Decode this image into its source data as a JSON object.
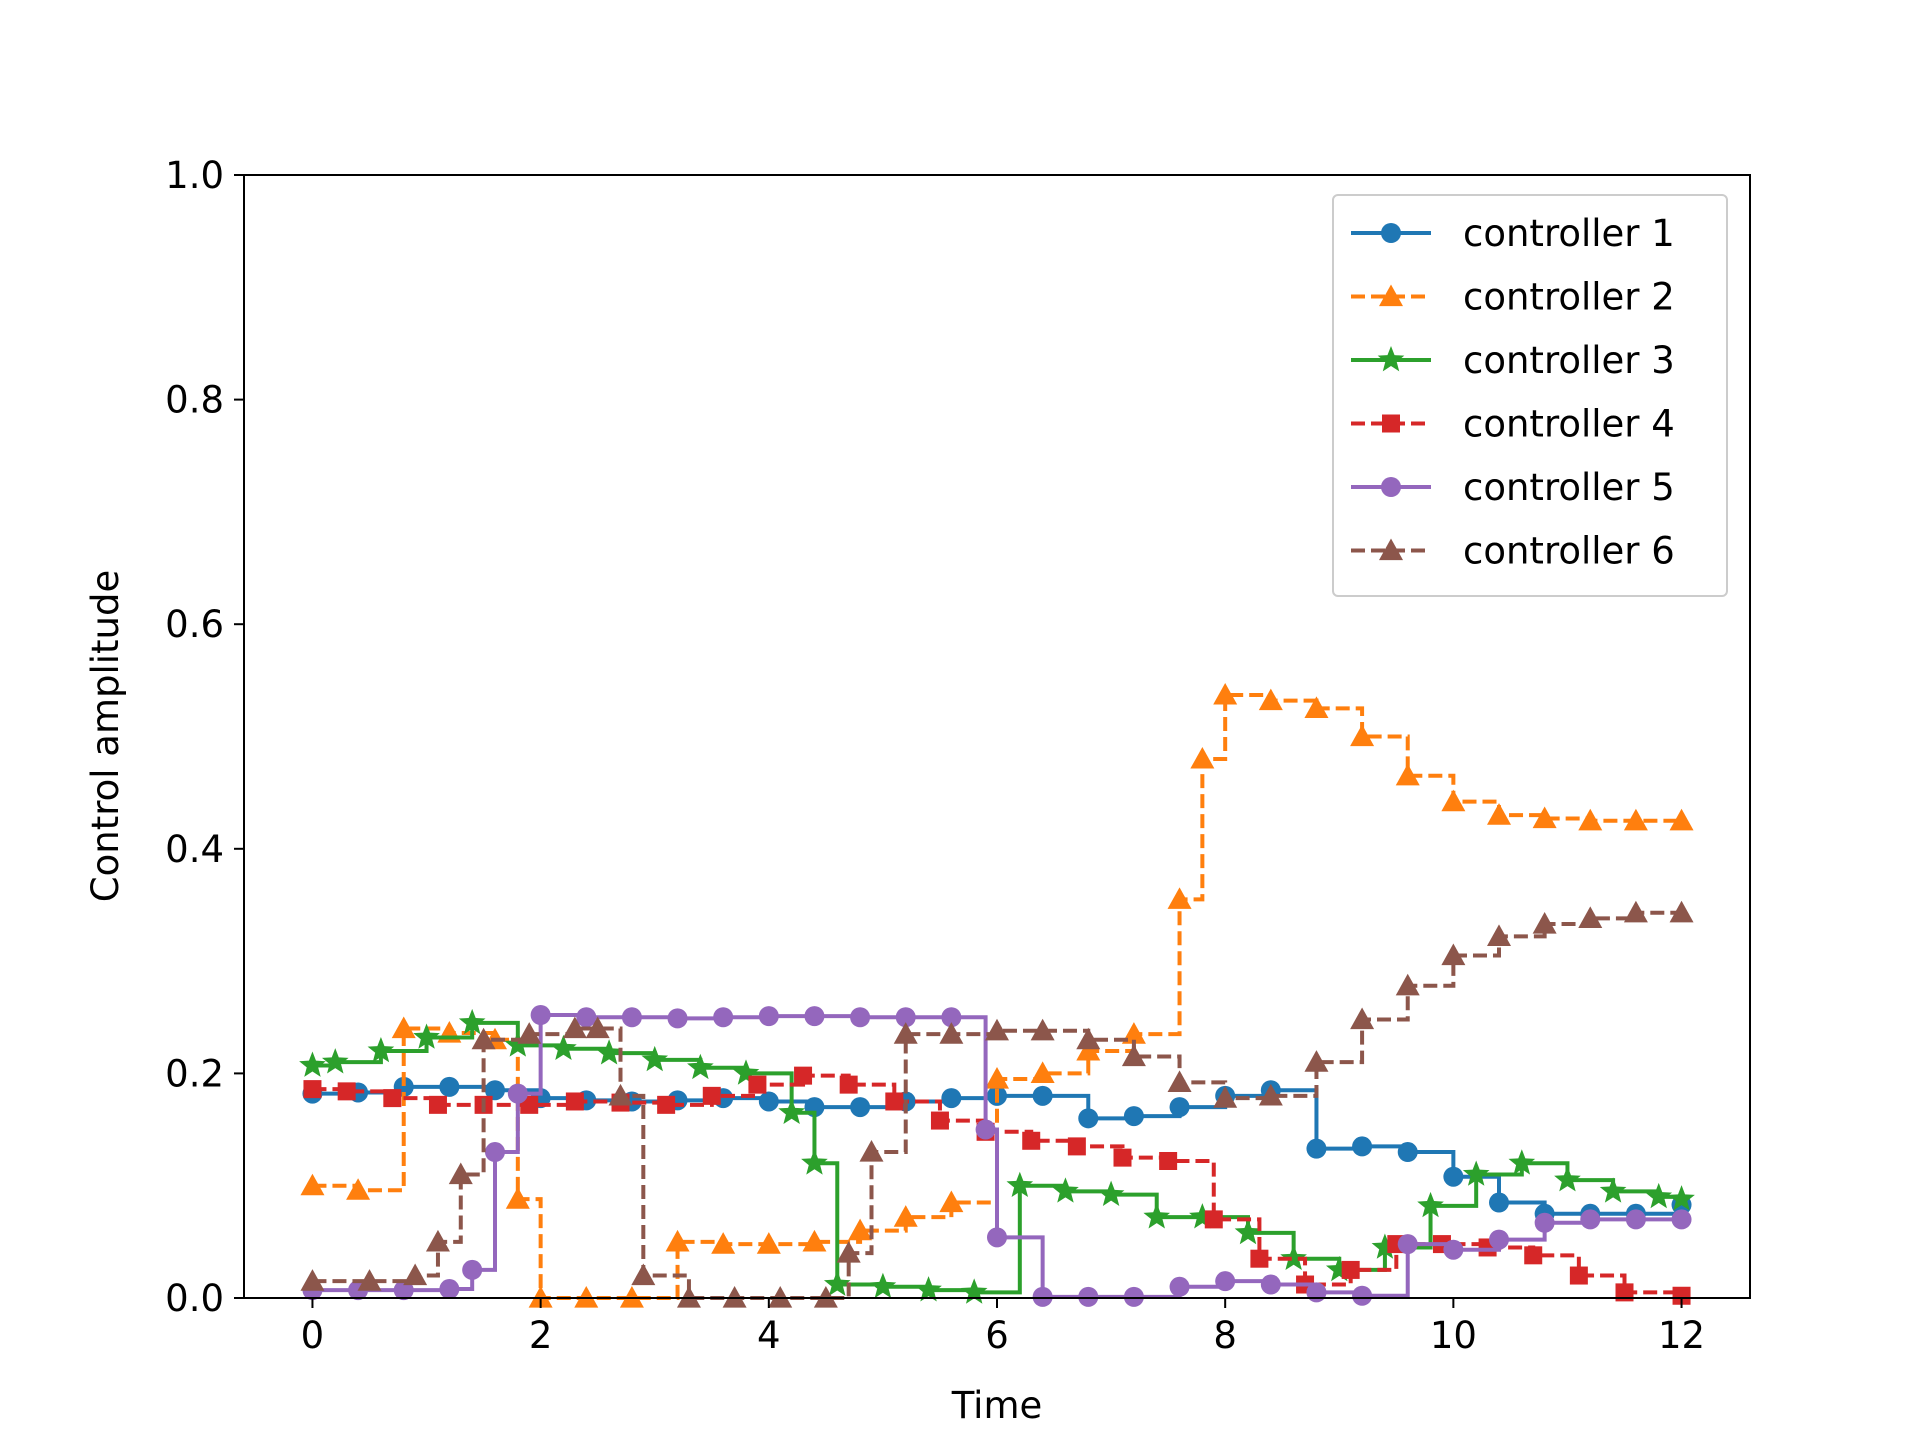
{
  "chart_data": {
    "type": "line",
    "title": "",
    "xlabel": "Time",
    "ylabel": "Control amplitude",
    "xlim": [
      -0.6,
      12.6
    ],
    "ylim": [
      0.0,
      1.0
    ],
    "xticks": [
      0,
      2,
      4,
      6,
      8,
      10,
      12
    ],
    "yticks": [
      0.0,
      0.2,
      0.4,
      0.6,
      0.8,
      1.0
    ],
    "xtick_labels": [
      "0",
      "2",
      "4",
      "6",
      "8",
      "10",
      "12"
    ],
    "ytick_labels": [
      "0.0",
      "0.2",
      "0.4",
      "0.6",
      "0.8",
      "1.0"
    ],
    "grid": false,
    "legend_position": "top-right",
    "draw_style": "steps-post",
    "series": [
      {
        "name": "controller 1",
        "color": "#1f77b4",
        "line_style": "solid",
        "marker": "circle",
        "x": [
          0,
          0.4,
          0.8,
          1.2,
          1.6,
          2.0,
          2.4,
          2.8,
          3.2,
          3.6,
          4.0,
          4.4,
          4.8,
          5.2,
          5.6,
          6.0,
          6.4,
          6.8,
          7.2,
          7.6,
          8.0,
          8.4,
          8.8,
          9.2,
          9.6,
          10.0,
          10.4,
          10.8,
          11.2,
          11.6,
          12.0
        ],
        "y": [
          0.182,
          0.183,
          0.188,
          0.188,
          0.185,
          0.178,
          0.176,
          0.175,
          0.176,
          0.178,
          0.175,
          0.17,
          0.17,
          0.175,
          0.178,
          0.18,
          0.18,
          0.16,
          0.162,
          0.17,
          0.18,
          0.185,
          0.133,
          0.135,
          0.13,
          0.108,
          0.085,
          0.075,
          0.075,
          0.075,
          0.083
        ]
      },
      {
        "name": "controller 2",
        "color": "#ff7f0e",
        "line_style": "dashed",
        "marker": "triangle",
        "x": [
          0,
          0.4,
          0.8,
          1.2,
          1.6,
          1.8,
          2.0,
          2.4,
          2.8,
          3.2,
          3.6,
          4.0,
          4.4,
          4.8,
          5.2,
          5.6,
          6.0,
          6.4,
          6.8,
          7.2,
          7.6,
          7.8,
          8.0,
          8.4,
          8.8,
          9.2,
          9.6,
          10.0,
          10.4,
          10.8,
          11.2,
          11.6,
          12.0
        ],
        "y": [
          0.1,
          0.096,
          0.24,
          0.236,
          0.23,
          0.088,
          0.0,
          0.0,
          0.0,
          0.05,
          0.048,
          0.048,
          0.05,
          0.06,
          0.072,
          0.085,
          0.195,
          0.2,
          0.22,
          0.235,
          0.355,
          0.48,
          0.537,
          0.532,
          0.525,
          0.5,
          0.465,
          0.442,
          0.43,
          0.427,
          0.425,
          0.425,
          0.425
        ]
      },
      {
        "name": "controller 3",
        "color": "#2ca02c",
        "line_style": "solid",
        "marker": "star",
        "x": [
          0,
          0.2,
          0.6,
          1.0,
          1.4,
          1.8,
          2.2,
          2.6,
          3.0,
          3.4,
          3.8,
          4.2,
          4.4,
          4.6,
          5.0,
          5.4,
          5.8,
          6.2,
          6.6,
          7.0,
          7.4,
          7.8,
          8.2,
          8.6,
          9.0,
          9.4,
          9.8,
          10.2,
          10.6,
          11.0,
          11.4,
          11.8,
          12.0
        ],
        "y": [
          0.207,
          0.21,
          0.22,
          0.232,
          0.245,
          0.225,
          0.222,
          0.218,
          0.212,
          0.205,
          0.2,
          0.165,
          0.12,
          0.012,
          0.01,
          0.007,
          0.005,
          0.1,
          0.095,
          0.092,
          0.072,
          0.072,
          0.058,
          0.035,
          0.025,
          0.045,
          0.082,
          0.11,
          0.12,
          0.105,
          0.095,
          0.09,
          0.088
        ]
      },
      {
        "name": "controller 4",
        "color": "#d62728",
        "line_style": "dashed",
        "marker": "square",
        "x": [
          0,
          0.3,
          0.7,
          1.1,
          1.5,
          1.9,
          2.3,
          2.7,
          3.1,
          3.5,
          3.9,
          4.3,
          4.7,
          5.1,
          5.5,
          5.9,
          6.3,
          6.7,
          7.1,
          7.5,
          7.9,
          8.3,
          8.7,
          9.1,
          9.5,
          9.9,
          10.3,
          10.7,
          11.1,
          11.5,
          12.0
        ],
        "y": [
          0.186,
          0.184,
          0.178,
          0.172,
          0.172,
          0.172,
          0.175,
          0.174,
          0.172,
          0.18,
          0.19,
          0.198,
          0.19,
          0.175,
          0.158,
          0.148,
          0.14,
          0.135,
          0.125,
          0.122,
          0.07,
          0.035,
          0.012,
          0.025,
          0.048,
          0.048,
          0.045,
          0.038,
          0.02,
          0.005,
          0.002
        ]
      },
      {
        "name": "controller 5",
        "color": "#9467bd",
        "line_style": "solid",
        "marker": "circle",
        "x": [
          0,
          0.4,
          0.8,
          1.2,
          1.4,
          1.6,
          1.8,
          2.0,
          2.4,
          2.8,
          3.2,
          3.6,
          4.0,
          4.4,
          4.8,
          5.2,
          5.6,
          5.9,
          6.0,
          6.4,
          6.8,
          7.2,
          7.6,
          8.0,
          8.4,
          8.8,
          9.2,
          9.6,
          10.0,
          10.4,
          10.8,
          11.2,
          11.6,
          12.0
        ],
        "y": [
          0.007,
          0.007,
          0.007,
          0.008,
          0.025,
          0.13,
          0.182,
          0.252,
          0.25,
          0.25,
          0.249,
          0.25,
          0.251,
          0.251,
          0.25,
          0.25,
          0.25,
          0.15,
          0.054,
          0.001,
          0.001,
          0.001,
          0.01,
          0.015,
          0.012,
          0.005,
          0.002,
          0.048,
          0.043,
          0.052,
          0.067,
          0.07,
          0.07,
          0.07
        ]
      },
      {
        "name": "controller 6",
        "color": "#8c564b",
        "line_style": "dashed",
        "marker": "triangle",
        "x": [
          0,
          0.5,
          0.9,
          1.1,
          1.3,
          1.5,
          1.9,
          2.3,
          2.5,
          2.7,
          2.9,
          3.3,
          3.7,
          4.1,
          4.5,
          4.7,
          4.9,
          5.2,
          5.6,
          6.0,
          6.4,
          6.8,
          7.2,
          7.6,
          8.0,
          8.4,
          8.8,
          9.2,
          9.6,
          10.0,
          10.4,
          10.8,
          11.2,
          11.6,
          12.0
        ],
        "y": [
          0.015,
          0.015,
          0.02,
          0.05,
          0.11,
          0.23,
          0.235,
          0.24,
          0.24,
          0.18,
          0.02,
          0.0,
          0.0,
          0.0,
          0.0,
          0.04,
          0.13,
          0.235,
          0.235,
          0.238,
          0.238,
          0.23,
          0.215,
          0.192,
          0.178,
          0.18,
          0.21,
          0.248,
          0.278,
          0.305,
          0.322,
          0.333,
          0.338,
          0.343,
          0.343
        ]
      }
    ]
  }
}
